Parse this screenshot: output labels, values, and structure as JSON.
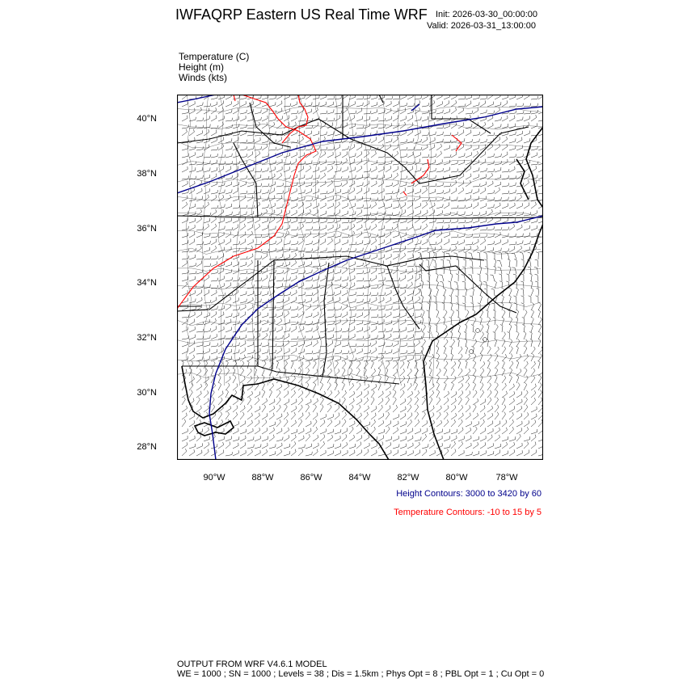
{
  "header": {
    "title": "IWFAQRP Eastern US Real Time WRF",
    "init": "Init: 2026-03-30_00:00:00",
    "valid": "Valid: 2026-03-31_13:00:00"
  },
  "fields": [
    "Temperature   (C)",
    "Height   (m)",
    "Winds   (kts)"
  ],
  "axes": {
    "lat_labels": [
      "40°N",
      "38°N",
      "36°N",
      "34°N",
      "32°N",
      "30°N",
      "28°N"
    ],
    "lon_labels": [
      "90°W",
      "88°W",
      "86°W",
      "84°W",
      "82°W",
      "80°W",
      "78°W"
    ]
  },
  "contours": {
    "height": "Height Contours: 3000 to 3420 by 60",
    "temperature": "Temperature Contours: -10 to 15 by 5",
    "height_color": "#00008b",
    "temperature_color": "#ff0000"
  },
  "footer": {
    "line1": "OUTPUT FROM WRF V4.6.1 MODEL",
    "line2": "WE = 1000 ; SN = 1000 ; Levels = 38 ; Dis = 1.5km ; Phys Opt = 8 ; PBL Opt = 1 ; Cu Opt = 0"
  }
}
